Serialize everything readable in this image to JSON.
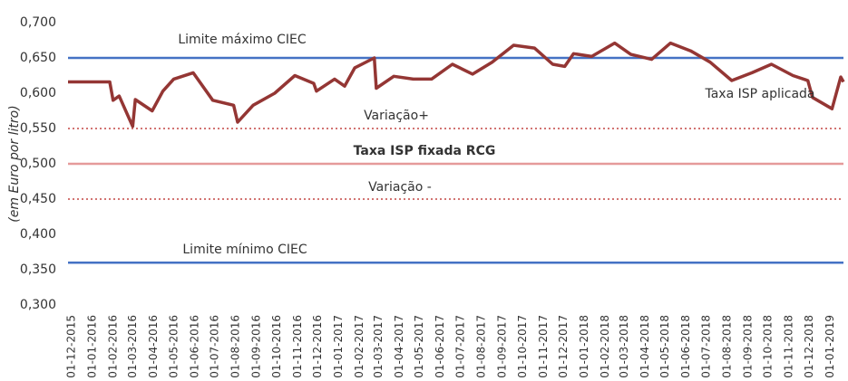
{
  "chart_data": {
    "type": "line",
    "y_label": "(em Euro por litro)",
    "ylim": [
      0.3,
      0.7
    ],
    "yticks": [
      {
        "value": 0.3,
        "label": "0,300"
      },
      {
        "value": 0.35,
        "label": "0,350"
      },
      {
        "value": 0.4,
        "label": "0,400"
      },
      {
        "value": 0.45,
        "label": "0,450"
      },
      {
        "value": 0.5,
        "label": "0,500"
      },
      {
        "value": 0.55,
        "label": "0,550"
      },
      {
        "value": 0.6,
        "label": "0,600"
      },
      {
        "value": 0.65,
        "label": "0,650"
      },
      {
        "value": 0.7,
        "label": "0,700"
      }
    ],
    "xlim": [
      "01-12-2015",
      "26-01-2019"
    ],
    "xticks": [
      "01-12-2015",
      "01-01-2016",
      "01-02-2016",
      "01-03-2016",
      "01-04-2016",
      "01-05-2016",
      "01-06-2016",
      "01-07-2016",
      "01-08-2016",
      "01-09-2016",
      "01-10-2016",
      "01-11-2016",
      "01-12-2016",
      "01-01-2017",
      "01-02-2017",
      "01-03-2017",
      "01-04-2017",
      "01-05-2017",
      "01-06-2017",
      "01-07-2017",
      "01-08-2017",
      "01-09-2017",
      "01-10-2017",
      "01-11-2017",
      "01-12-2017",
      "01-01-2018",
      "01-02-2018",
      "01-03-2018",
      "01-04-2018",
      "01-05-2018",
      "01-06-2018",
      "01-07-2018",
      "01-08-2018",
      "01-09-2018",
      "01-10-2018",
      "01-11-2018",
      "01-12-2018",
      "01-01-2019"
    ],
    "series": [
      {
        "name": "Taxa ISP aplicada",
        "color": "#943634",
        "x": [
          "01-12-2015",
          "01-02-2016",
          "06-02-2016",
          "15-02-2016",
          "06-03-2016",
          "10-03-2016",
          "04-04-2016",
          "20-04-2016",
          "06-05-2016",
          "04-06-2016",
          "03-07-2016",
          "03-08-2016",
          "09-08-2016",
          "01-09-2016",
          "03-10-2016",
          "02-11-2016",
          "30-11-2016",
          "04-12-2016",
          "31-12-2016",
          "15-01-2017",
          "30-01-2017",
          "28-02-2017",
          "03-03-2017",
          "29-03-2017",
          "27-04-2017",
          "24-05-2017",
          "24-06-2017",
          "07-07-2017",
          "24-07-2017",
          "22-08-2017",
          "23-09-2017",
          "24-10-2017",
          "20-11-2017",
          "08-12-2017",
          "21-12-2017",
          "17-01-2018",
          "20-02-2018",
          "16-03-2018",
          "16-04-2018",
          "14-05-2018",
          "13-06-2018",
          "12-07-2018",
          "13-08-2018",
          "12-09-2018",
          "11-10-2018",
          "12-11-2018",
          "04-12-2018",
          "11-12-2018",
          "09-01-2019",
          "22-01-2019",
          "26-01-2019"
        ],
        "values": [
          0.616,
          0.616,
          0.59,
          0.596,
          0.553,
          0.591,
          0.575,
          0.603,
          0.62,
          0.629,
          0.59,
          0.583,
          0.559,
          0.583,
          0.6,
          0.625,
          0.614,
          0.603,
          0.62,
          0.61,
          0.636,
          0.65,
          0.607,
          0.624,
          0.62,
          0.62,
          0.641,
          0.635,
          0.627,
          0.644,
          0.668,
          0.664,
          0.641,
          0.638,
          0.656,
          0.652,
          0.671,
          0.655,
          0.648,
          0.671,
          0.66,
          0.644,
          0.618,
          0.629,
          0.641,
          0.625,
          0.618,
          0.594,
          0.578,
          0.623,
          0.616
        ]
      }
    ],
    "reference_lines": [
      {
        "label": "Limite máximo CIEC",
        "value": 0.65,
        "color": "#4472c4",
        "style": "solid"
      },
      {
        "label": "Variação+",
        "value": 0.55,
        "color": "#d27472",
        "style": "dotted"
      },
      {
        "label": "Taxa ISP fixada RCG",
        "value": 0.5,
        "color": "#e59a9a",
        "style": "solid"
      },
      {
        "label": "Variação -",
        "value": 0.45,
        "color": "#d27472",
        "style": "dotted"
      },
      {
        "label": "Limite mínimo CIEC",
        "value": 0.36,
        "color": "#4472c4",
        "style": "solid"
      }
    ]
  }
}
